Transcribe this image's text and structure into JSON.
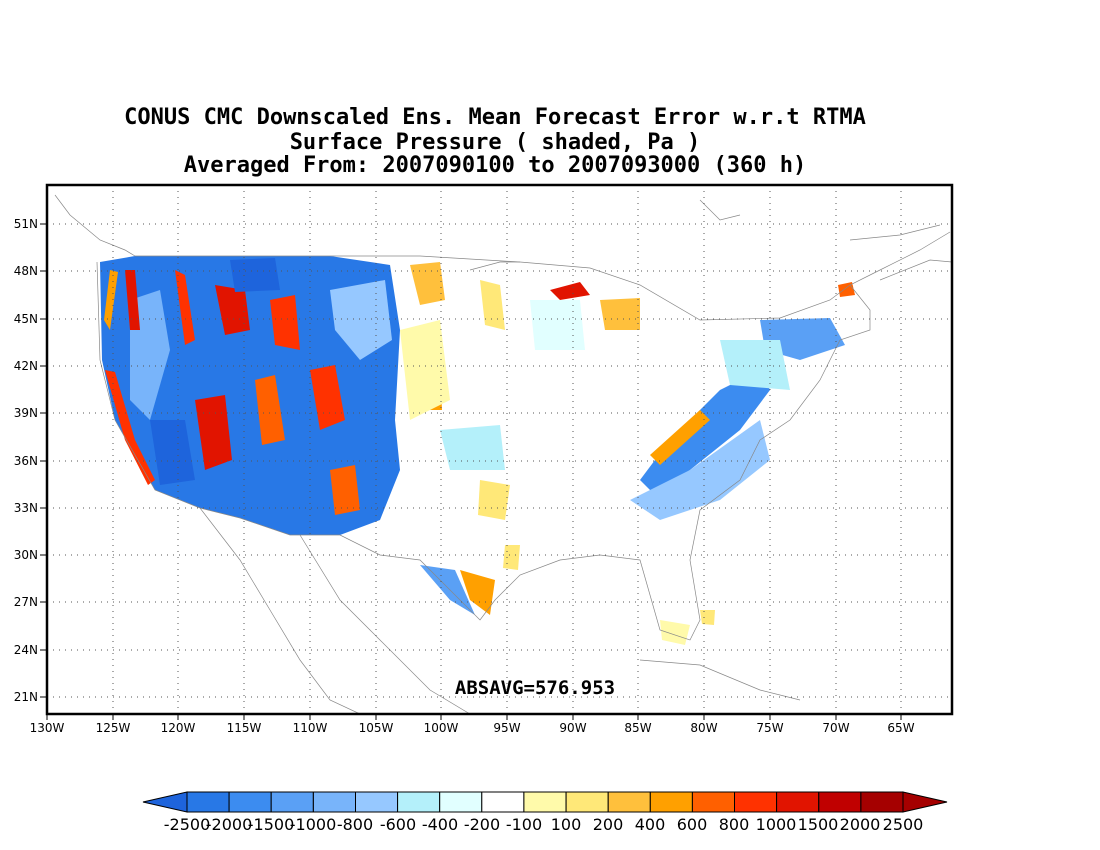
{
  "titles": [
    "CONUS CMC Downscaled Ens. Mean Forecast Error w.r.t RTMA",
    "Surface Pressure ( shaded, Pa )",
    "Averaged From: 2007090100 to 2007093000 (360 h)"
  ],
  "annotation": "ABSAVG=576.953",
  "map": {
    "lon_range": [
      -130,
      -60
    ],
    "lat_range": [
      19,
      53
    ],
    "lon_ticks": [
      "130W",
      "125W",
      "120W",
      "115W",
      "110W",
      "105W",
      "100W",
      "95W",
      "90W",
      "85W",
      "80W",
      "75W",
      "70W",
      "65W"
    ],
    "lat_ticks": [
      "51N",
      "48N",
      "45N",
      "42N",
      "39N",
      "36N",
      "33N",
      "30N",
      "27N",
      "24N",
      "21N"
    ],
    "grid": "dotted"
  },
  "colorbar": {
    "labels": [
      "-2500",
      "-2000",
      "-1500",
      "-1000",
      "-800",
      "-600",
      "-400",
      "-200",
      "-100",
      "100",
      "200",
      "400",
      "600",
      "800",
      "1000",
      "1500",
      "2000",
      "2500"
    ],
    "colors": [
      "#1e64dc",
      "#2878e6",
      "#3c8cf0",
      "#5aa0f5",
      "#78b4fa",
      "#96c8ff",
      "#b4f0fa",
      "#e1ffff",
      "#ffffff",
      "#fffaaa",
      "#ffe878",
      "#ffc03c",
      "#ffa000",
      "#ff6000",
      "#ff3200",
      "#e11400",
      "#c00000",
      "#a50000"
    ],
    "under_color": "#1e64dc",
    "over_color": "#a50000"
  }
}
